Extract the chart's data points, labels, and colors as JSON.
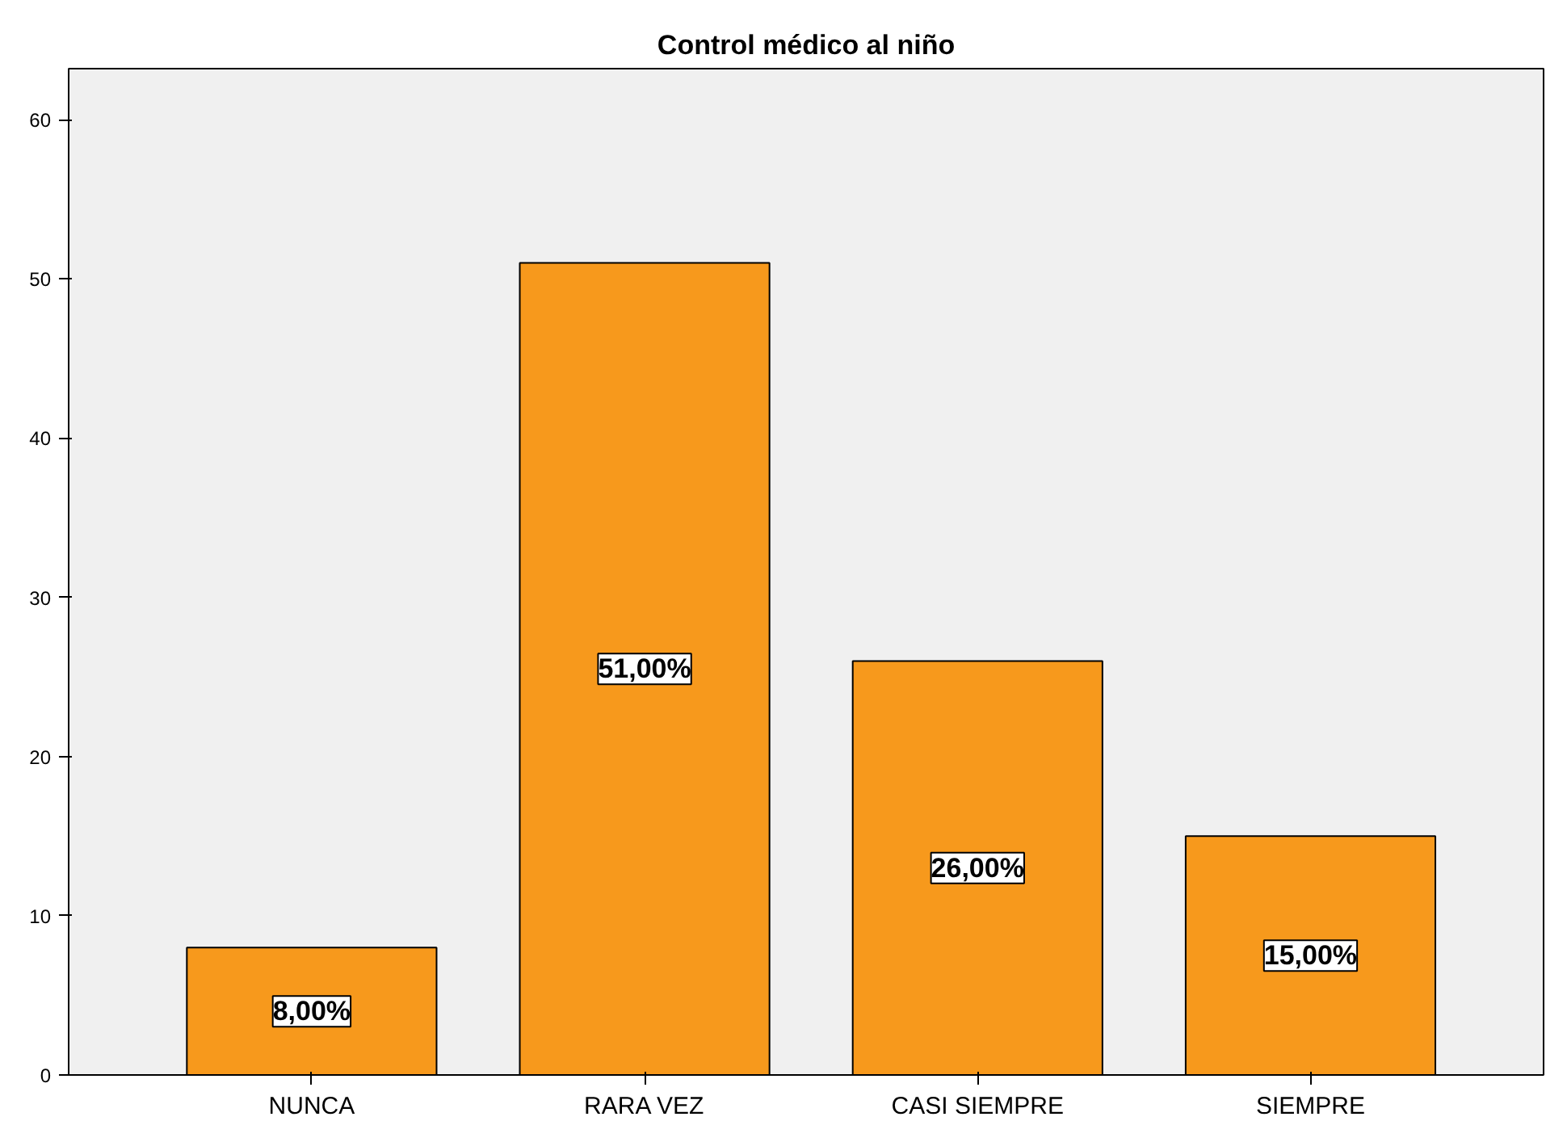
{
  "chart_data": {
    "type": "bar",
    "title": "Control médico al niño",
    "categories": [
      "NUNCA",
      "RARA VEZ",
      "CASI SIEMPRE",
      "SIEMPRE"
    ],
    "values": [
      8,
      51,
      26,
      15
    ],
    "value_labels": [
      "8,00%",
      "51,00%",
      "26,00%",
      "15,00%"
    ],
    "color": "#f7991c",
    "ylim": [
      0,
      63.2
    ],
    "yticks": [
      0,
      10,
      20,
      30,
      40,
      50,
      60
    ],
    "grid": false
  }
}
